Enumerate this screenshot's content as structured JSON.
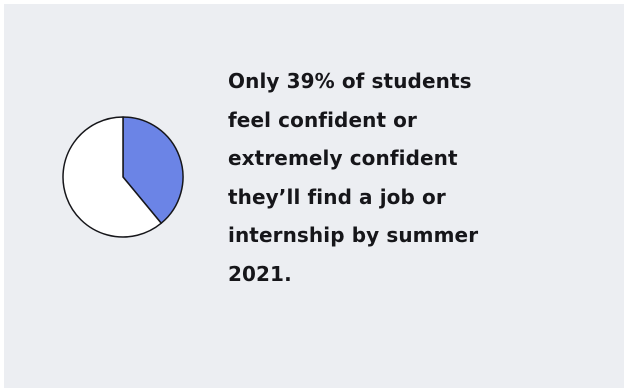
{
  "headline": {
    "lines": [
      "Only 39% of students",
      "feel confident or",
      "extremely confident",
      "they’ll find a job or",
      "internship by summer",
      "2021."
    ]
  },
  "chart_data": {
    "type": "pie",
    "categories": [
      "",
      ""
    ],
    "values": [
      39,
      61
    ],
    "colors": [
      "#6b84e6",
      "#ffffff"
    ],
    "stroke_color": "#16161a",
    "start": "12 o'clock",
    "direction": "clockwise"
  }
}
